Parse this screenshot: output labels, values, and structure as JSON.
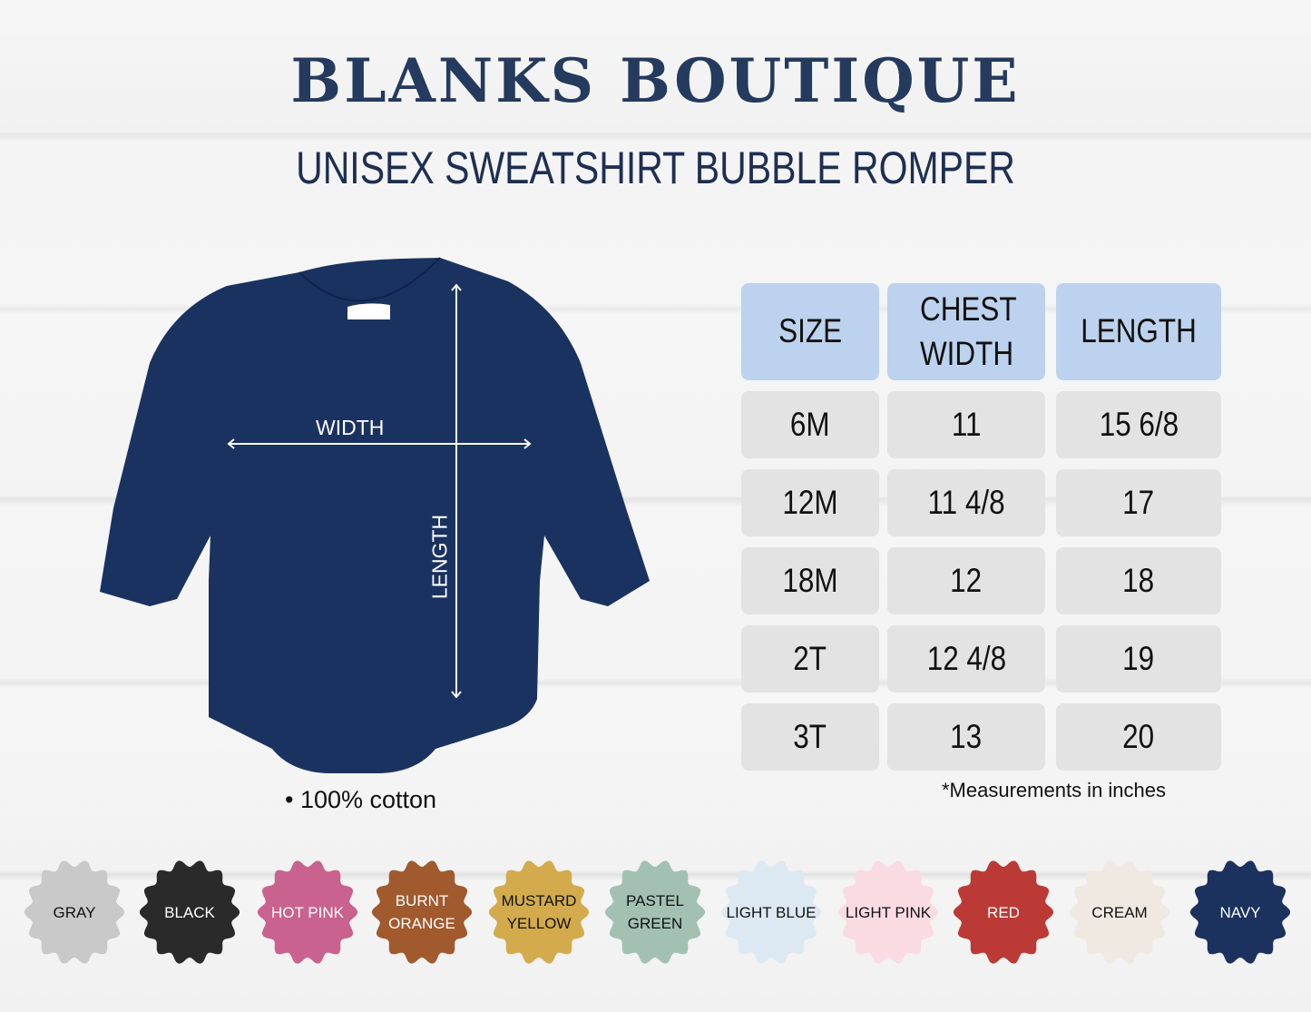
{
  "header": {
    "title": "BLANKS BOUTIQUE",
    "subtitle": "UNISEX SWEATSHIRT BUBBLE ROMPER"
  },
  "product": {
    "color": "#1a3260",
    "width_label": "WIDTH",
    "length_label": "LENGTH",
    "material": "• 100% cotton"
  },
  "size_table": {
    "columns": [
      "SIZE",
      "CHEST WIDTH",
      "LENGTH"
    ],
    "rows": [
      [
        "6M",
        "11",
        "15 6/8"
      ],
      [
        "12M",
        "11 4/8",
        "17"
      ],
      [
        "18M",
        "12",
        "18"
      ],
      [
        "2T",
        "12 4/8",
        "19"
      ],
      [
        "3T",
        "13",
        "20"
      ]
    ],
    "note": "*Measurements in inches",
    "header_color": "#bcd2ee",
    "cell_color": "#e3e3e3"
  },
  "colors": [
    {
      "label": "GRAY",
      "hex": "#c9c9c9",
      "text": "#111"
    },
    {
      "label": "BLACK",
      "hex": "#2a2a2a",
      "text": "#fff"
    },
    {
      "label": "HOT PINK",
      "hex": "#c9628e",
      "text": "#fff"
    },
    {
      "label": "BURNT\nORANGE",
      "hex": "#a05a2e",
      "text": "#fff"
    },
    {
      "label": "MUSTARD\nYELLOW",
      "hex": "#d3ab4c",
      "text": "#111"
    },
    {
      "label": "PASTEL\nGREEN",
      "hex": "#a3c1b2",
      "text": "#111"
    },
    {
      "label": "LIGHT BLUE",
      "hex": "#dde9f2",
      "text": "#111"
    },
    {
      "label": "LIGHT PINK",
      "hex": "#fadbe2",
      "text": "#111"
    },
    {
      "label": "RED",
      "hex": "#bc3a35",
      "text": "#fff"
    },
    {
      "label": "CREAM",
      "hex": "#efe9e2",
      "text": "#111"
    },
    {
      "label": "NAVY",
      "hex": "#1b315e",
      "text": "#fff"
    }
  ]
}
